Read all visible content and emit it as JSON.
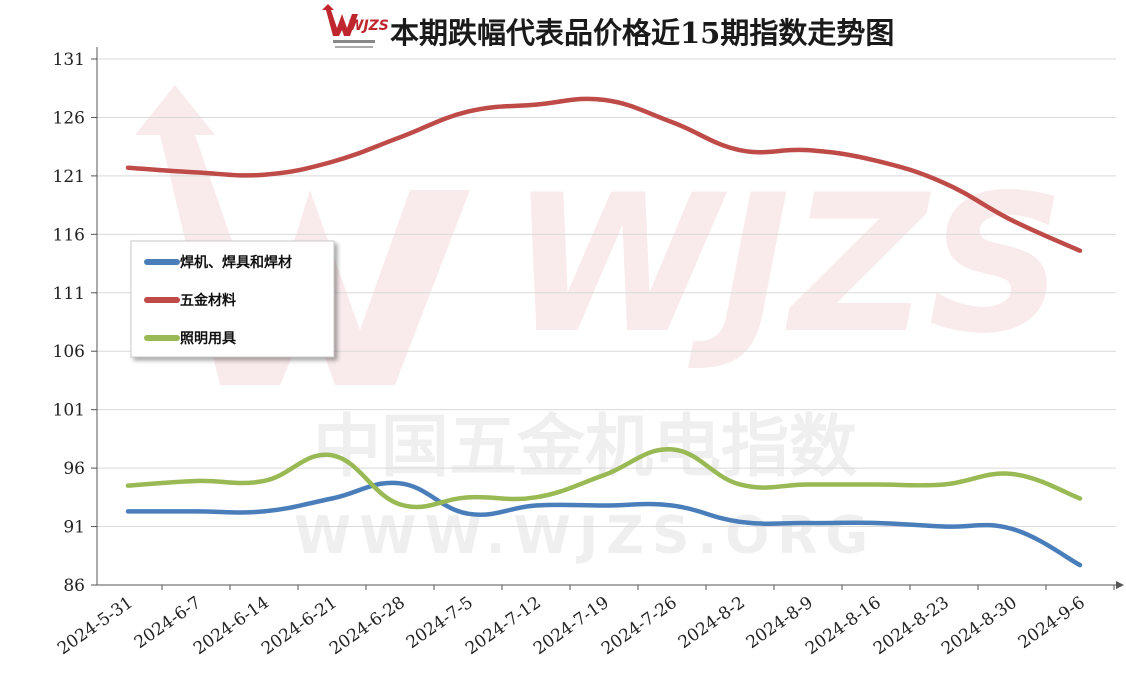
{
  "chart_data": {
    "type": "line",
    "title": "本期跌幅代表品价格近15期指数走势图",
    "logo_text": "WJZS",
    "watermark": {
      "text_cn": "中国五金机电指数",
      "text_url": "WWW.WJZS.ORG"
    },
    "categories": [
      "2024-5-31",
      "2024-6-7",
      "2024-6-14",
      "2024-6-21",
      "2024-6-28",
      "2024-7-5",
      "2024-7-12",
      "2024-7-19",
      "2024-7-26",
      "2024-8-2",
      "2024-8-9",
      "2024-8-16",
      "2024-8-23",
      "2024-8-30",
      "2024-9-6"
    ],
    "ylim": [
      86,
      131
    ],
    "yticks": [
      131,
      126,
      121,
      116,
      111,
      106,
      101,
      96,
      91,
      86
    ],
    "grid": true,
    "legend_position": "left-middle",
    "series": [
      {
        "name": "焊机、焊具和焊材",
        "color": "#4a7ebb",
        "values": [
          92.3,
          92.3,
          92.3,
          93.4,
          94.7,
          92.1,
          92.8,
          92.8,
          92.8,
          91.4,
          91.3,
          91.3,
          91.0,
          90.8,
          87.7
        ]
      },
      {
        "name": "五金材料",
        "color": "#be4b48",
        "values": [
          121.7,
          121.3,
          121.1,
          122.2,
          124.3,
          126.5,
          127.1,
          127.5,
          125.6,
          123.2,
          123.2,
          122.3,
          120.4,
          117.2,
          114.6
        ]
      },
      {
        "name": "照明用具",
        "color": "#98b954",
        "values": [
          94.5,
          94.9,
          94.9,
          97.1,
          92.9,
          93.5,
          93.5,
          95.4,
          97.6,
          94.6,
          94.6,
          94.6,
          94.6,
          95.5,
          93.4
        ]
      }
    ]
  }
}
